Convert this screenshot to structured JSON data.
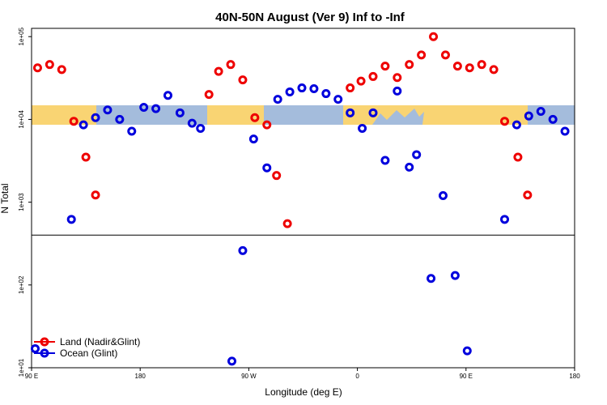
{
  "chart_data": {
    "type": "scatter",
    "title": "40N-50N August (Ver 9)   Inf to -Inf",
    "xlabel": "Longitude (deg E)",
    "ylabel": "N Total",
    "xlim": [
      90,
      540
    ],
    "ylim_log10": [
      1,
      5.1
    ],
    "log_y": true,
    "x_ticks": [
      {
        "value": 90,
        "label": "90 E"
      },
      {
        "value": 180,
        "label": "180"
      },
      {
        "value": 270,
        "label": "90 W"
      },
      {
        "value": 360,
        "label": "0"
      },
      {
        "value": 450,
        "label": "90 E"
      },
      {
        "value": 540,
        "label": "180"
      }
    ],
    "y_ticks": [
      {
        "value": 10,
        "label": "1e+01"
      },
      {
        "value": 100,
        "label": "1e+02"
      },
      {
        "value": 1000,
        "label": "1e+03"
      },
      {
        "value": 10000,
        "label": "1e+04"
      },
      {
        "value": 100000,
        "label": "1e+05"
      }
    ],
    "reference_line_y": 400,
    "legend_position": "bottom-left",
    "series": [
      {
        "name": "Land (Nadir&Glint)",
        "color": "#ee0000",
        "points": [
          {
            "x": 95,
            "y": 42000
          },
          {
            "x": 105,
            "y": 46000
          },
          {
            "x": 115,
            "y": 40000
          },
          {
            "x": 125,
            "y": 9500
          },
          {
            "x": 135,
            "y": 3500
          },
          {
            "x": 143,
            "y": 1220
          },
          {
            "x": 237,
            "y": 20000
          },
          {
            "x": 245,
            "y": 38000
          },
          {
            "x": 255,
            "y": 46000
          },
          {
            "x": 265,
            "y": 30000
          },
          {
            "x": 275,
            "y": 10500
          },
          {
            "x": 285,
            "y": 8600
          },
          {
            "x": 293,
            "y": 2100
          },
          {
            "x": 302,
            "y": 550
          },
          {
            "x": 354,
            "y": 24000
          },
          {
            "x": 363,
            "y": 29000
          },
          {
            "x": 373,
            "y": 33000
          },
          {
            "x": 383,
            "y": 44000
          },
          {
            "x": 393,
            "y": 32000
          },
          {
            "x": 403,
            "y": 46000
          },
          {
            "x": 413,
            "y": 60000
          },
          {
            "x": 423,
            "y": 100000
          },
          {
            "x": 433,
            "y": 60000
          },
          {
            "x": 443,
            "y": 44000
          },
          {
            "x": 453,
            "y": 42000
          },
          {
            "x": 463,
            "y": 46000
          },
          {
            "x": 473,
            "y": 40000
          },
          {
            "x": 482,
            "y": 9500
          },
          {
            "x": 493,
            "y": 3500
          },
          {
            "x": 501,
            "y": 1220
          }
        ]
      },
      {
        "name": "Ocean (Glint)",
        "color": "#0000dd",
        "points": [
          {
            "x": 93,
            "y": 17
          },
          {
            "x": 123,
            "y": 620
          },
          {
            "x": 133,
            "y": 8600
          },
          {
            "x": 143,
            "y": 10500
          },
          {
            "x": 153,
            "y": 13000
          },
          {
            "x": 163,
            "y": 10000
          },
          {
            "x": 173,
            "y": 7200
          },
          {
            "x": 183,
            "y": 14000
          },
          {
            "x": 193,
            "y": 13500
          },
          {
            "x": 203,
            "y": 19500
          },
          {
            "x": 213,
            "y": 12000
          },
          {
            "x": 223,
            "y": 9000
          },
          {
            "x": 230,
            "y": 7800
          },
          {
            "x": 256,
            "y": 12
          },
          {
            "x": 265,
            "y": 260
          },
          {
            "x": 274,
            "y": 5800
          },
          {
            "x": 285,
            "y": 2600
          },
          {
            "x": 294,
            "y": 17500
          },
          {
            "x": 304,
            "y": 21500
          },
          {
            "x": 314,
            "y": 24000
          },
          {
            "x": 324,
            "y": 23500
          },
          {
            "x": 334,
            "y": 20500
          },
          {
            "x": 344,
            "y": 17500
          },
          {
            "x": 354,
            "y": 12000
          },
          {
            "x": 364,
            "y": 7800
          },
          {
            "x": 373,
            "y": 12000
          },
          {
            "x": 383,
            "y": 3200
          },
          {
            "x": 393,
            "y": 22000
          },
          {
            "x": 403,
            "y": 2650
          },
          {
            "x": 409,
            "y": 3750
          },
          {
            "x": 421,
            "y": 120
          },
          {
            "x": 431,
            "y": 1200
          },
          {
            "x": 441,
            "y": 130
          },
          {
            "x": 451,
            "y": 16
          },
          {
            "x": 482,
            "y": 620
          },
          {
            "x": 492,
            "y": 8600
          },
          {
            "x": 502,
            "y": 11000
          },
          {
            "x": 512,
            "y": 12500
          },
          {
            "x": 522,
            "y": 10000
          },
          {
            "x": 532,
            "y": 7200
          }
        ]
      }
    ]
  },
  "map_band": {
    "ocean_color": "#a4bcdc",
    "land_color": "#f9d473"
  }
}
